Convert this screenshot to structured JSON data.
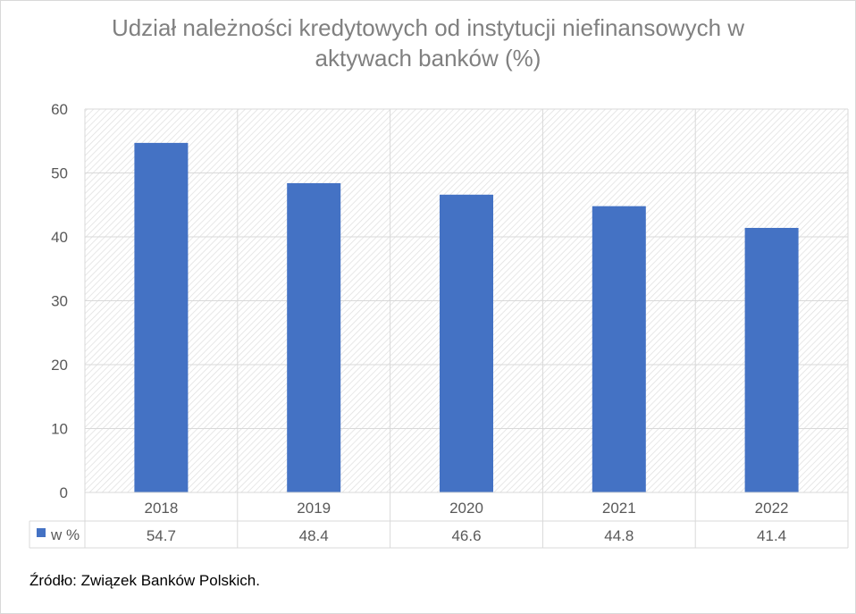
{
  "chart_data": {
    "type": "bar",
    "title_lines": [
      "Udział należności kredytowych od instytucji niefinansowych w",
      "aktywach banków (%)"
    ],
    "categories": [
      "2018",
      "2019",
      "2020",
      "2021",
      "2022"
    ],
    "series": [
      {
        "name": "w %",
        "values": [
          54.7,
          48.4,
          46.6,
          44.8,
          41.4
        ],
        "display_values": [
          "54.7",
          "48.4",
          "46.6",
          "44.8",
          "41.4"
        ],
        "color": "#4472c4"
      }
    ],
    "y_ticks": [
      "0",
      "10",
      "20",
      "30",
      "40",
      "50",
      "60"
    ],
    "ylim": [
      0,
      60
    ],
    "grid": true,
    "data_table": true,
    "legend": "in data table",
    "colors": {
      "bar": "#4472c4",
      "grid": "#d9d9d9",
      "axis_text": "#595959"
    }
  },
  "source": "Źródło: Związek Banków Polskich."
}
